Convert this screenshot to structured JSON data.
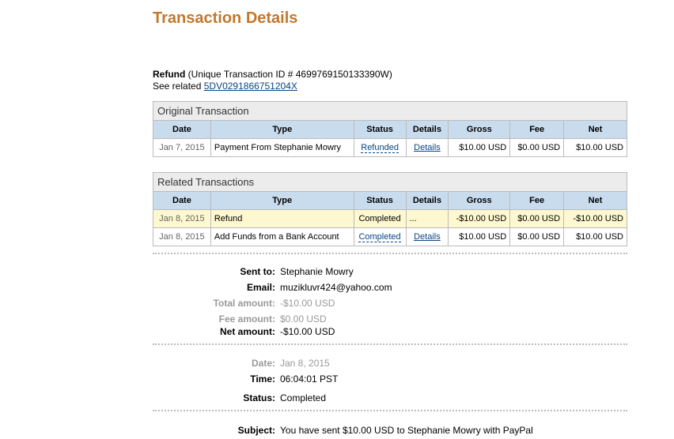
{
  "title": "Transaction Details",
  "summary": {
    "kind": "Refund",
    "id_text": "(Unique Transaction ID # 4699769150133390W)",
    "see_related": "See related",
    "related_id": "5DV0291866751204X"
  },
  "columns": [
    "Date",
    "Type",
    "Status",
    "Details",
    "Gross",
    "Fee",
    "Net"
  ],
  "original": {
    "caption": "Original Transaction",
    "rows": [
      {
        "date": "Jan 7, 2015",
        "type": "Payment From Stephanie Mowry",
        "status": "Refunded",
        "details": "Details",
        "gross": "$10.00 USD",
        "fee": "$0.00 USD",
        "net": "$10.00 USD"
      }
    ]
  },
  "related": {
    "caption": "Related Transactions",
    "rows": [
      {
        "date": "Jan 8, 2015",
        "type": "Refund",
        "status": "Completed",
        "details": "...",
        "gross": "-$10.00 USD",
        "fee": "$0.00 USD",
        "net": "-$10.00 USD"
      },
      {
        "date": "Jan 8, 2015",
        "type": "Add Funds from a Bank Account",
        "status": "Completed",
        "details": "Details",
        "gross": "$10.00 USD",
        "fee": "$0.00 USD",
        "net": "$10.00 USD"
      }
    ]
  },
  "info": {
    "sent_to": {
      "label": "Sent to:",
      "value": "Stephanie Mowry"
    },
    "email": {
      "label": "Email:",
      "value": "muzikluvr424@yahoo.com"
    },
    "total": {
      "label": "Total amount:",
      "value": "-$10.00 USD"
    },
    "fee": {
      "label": "Fee amount:",
      "value": "$0.00 USD"
    },
    "net": {
      "label": "Net amount:",
      "value": "-$10.00 USD"
    },
    "date": {
      "label": "Date:",
      "value": "Jan 8, 2015"
    },
    "time": {
      "label": "Time:",
      "value": "06:04:01 PST"
    },
    "status": {
      "label": "Status:",
      "value": "Completed"
    },
    "subject": {
      "label": "Subject:",
      "value": "You have sent $10.00 USD to Stephanie Mowry with PayPal"
    }
  },
  "colors": {
    "title": "#c4772b",
    "header": "#c9dcee",
    "highlight": "#fdf8cf",
    "link": "#084482"
  }
}
